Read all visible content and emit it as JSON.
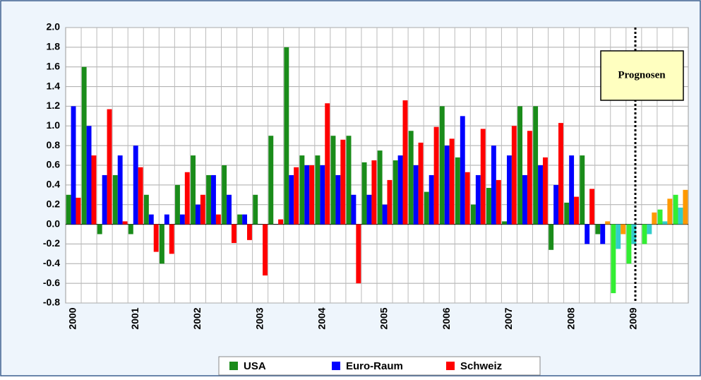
{
  "chart_data": {
    "type": "bar",
    "annotation": "Prognosen",
    "categories": [
      "2000",
      null,
      null,
      null,
      "2001",
      null,
      null,
      null,
      "2002",
      null,
      null,
      null,
      "2003",
      null,
      null,
      null,
      "2004",
      null,
      null,
      null,
      "2005",
      null,
      null,
      null,
      "2006",
      null,
      null,
      null,
      "2007",
      null,
      null,
      null,
      "2008",
      null,
      null,
      null,
      "2009",
      null,
      null,
      null
    ],
    "series": [
      {
        "name": "USA",
        "color": "#1a8c1a",
        "values": [
          0.3,
          1.6,
          -0.1,
          0.5,
          -0.1,
          0.3,
          -0.4,
          0.4,
          0.7,
          0.5,
          0.6,
          0.1,
          0.3,
          0.9,
          1.8,
          0.7,
          0.7,
          0.9,
          0.9,
          0.63,
          0.75,
          0.65,
          0.95,
          0.33,
          1.2,
          0.68,
          0.2,
          0.37,
          0.03,
          1.2,
          1.2,
          -0.26,
          0.22,
          0.7,
          -0.1,
          -0.7,
          -0.4,
          -0.2,
          0.15,
          0.3
        ],
        "colors": [
          "#1a8c1a",
          "#1a8c1a",
          "#1a8c1a",
          "#1a8c1a",
          "#1a8c1a",
          "#1a8c1a",
          "#1a8c1a",
          "#1a8c1a",
          "#1a8c1a",
          "#1a8c1a",
          "#1a8c1a",
          "#1a8c1a",
          "#1a8c1a",
          "#1a8c1a",
          "#1a8c1a",
          "#1a8c1a",
          "#1a8c1a",
          "#1a8c1a",
          "#1a8c1a",
          "#1a8c1a",
          "#1a8c1a",
          "#1a8c1a",
          "#1a8c1a",
          "#1a8c1a",
          "#1a8c1a",
          "#1a8c1a",
          "#1a8c1a",
          "#1a8c1a",
          "#1a8c1a",
          "#1a8c1a",
          "#1a8c1a",
          "#1a8c1a",
          "#1a8c1a",
          "#1a8c1a",
          "#1a8c1a",
          "#33ee33",
          "#33ee33",
          "#33ee33",
          "#33ee33",
          "#33ee33"
        ]
      },
      {
        "name": "Euro-Raum",
        "color": "#0000ff",
        "values": [
          1.2,
          1.0,
          0.5,
          0.7,
          0.8,
          0.1,
          0.1,
          0.1,
          0.2,
          0.5,
          0.3,
          0.1,
          0.0,
          0.0,
          0.5,
          0.6,
          0.6,
          0.5,
          0.3,
          0.3,
          0.2,
          0.7,
          0.6,
          0.5,
          0.8,
          1.1,
          0.5,
          0.8,
          0.7,
          0.5,
          0.6,
          0.4,
          0.7,
          -0.2,
          -0.2,
          -0.25,
          -0.2,
          -0.1,
          0.03,
          0.17
        ],
        "colors": [
          "#0000ff",
          "#0000ff",
          "#0000ff",
          "#0000ff",
          "#0000ff",
          "#0000ff",
          "#0000ff",
          "#0000ff",
          "#0000ff",
          "#0000ff",
          "#0000ff",
          "#0000ff",
          "#0000ff",
          "#0000ff",
          "#0000ff",
          "#0000ff",
          "#0000ff",
          "#0000ff",
          "#0000ff",
          "#0000ff",
          "#0000ff",
          "#0000ff",
          "#0000ff",
          "#0000ff",
          "#0000ff",
          "#0000ff",
          "#0000ff",
          "#0000ff",
          "#0000ff",
          "#0000ff",
          "#0000ff",
          "#0000ff",
          "#0000ff",
          "#0000ff",
          "#0000ff",
          "#33cccc",
          "#33cccc",
          "#33cccc",
          "#33cccc",
          "#33cccc"
        ]
      },
      {
        "name": "Schweiz",
        "color": "#ff0000",
        "values": [
          0.27,
          0.7,
          1.17,
          0.03,
          0.58,
          -0.28,
          -0.3,
          0.53,
          0.3,
          0.1,
          -0.19,
          -0.16,
          -0.52,
          0.05,
          0.58,
          0.6,
          1.23,
          0.86,
          -0.6,
          0.65,
          0.45,
          1.26,
          0.83,
          0.99,
          0.87,
          0.53,
          0.97,
          0.45,
          1.0,
          0.95,
          0.68,
          1.03,
          0.28,
          0.36,
          0.03,
          -0.1,
          0.0,
          0.12,
          0.26,
          0.35
        ],
        "colors": [
          "#ff0000",
          "#ff0000",
          "#ff0000",
          "#ff0000",
          "#ff0000",
          "#ff0000",
          "#ff0000",
          "#ff0000",
          "#ff0000",
          "#ff0000",
          "#ff0000",
          "#ff0000",
          "#ff0000",
          "#ff0000",
          "#ff0000",
          "#ff0000",
          "#ff0000",
          "#ff0000",
          "#ff0000",
          "#ff0000",
          "#ff0000",
          "#ff0000",
          "#ff0000",
          "#ff0000",
          "#ff0000",
          "#ff0000",
          "#ff0000",
          "#ff0000",
          "#ff0000",
          "#ff0000",
          "#ff0000",
          "#ff0000",
          "#ff0000",
          "#ff0000",
          "#ff9900",
          "#ff9900",
          "#ff9900",
          "#ff9900",
          "#ff9900",
          "#ff9900"
        ]
      }
    ],
    "ylim": [
      -0.8,
      2.0
    ],
    "yticks": [
      {
        "value": 2.0,
        "label": "2.0"
      },
      1.8,
      1.6,
      1.4,
      1.2,
      {
        "value": 1.0,
        "label": "1.0"
      },
      0.8,
      0.6,
      0.4,
      0.2,
      {
        "value": 0.0,
        "label": "0.0"
      },
      -0.2,
      -0.4,
      -0.6,
      -0.8
    ],
    "grid": true
  }
}
